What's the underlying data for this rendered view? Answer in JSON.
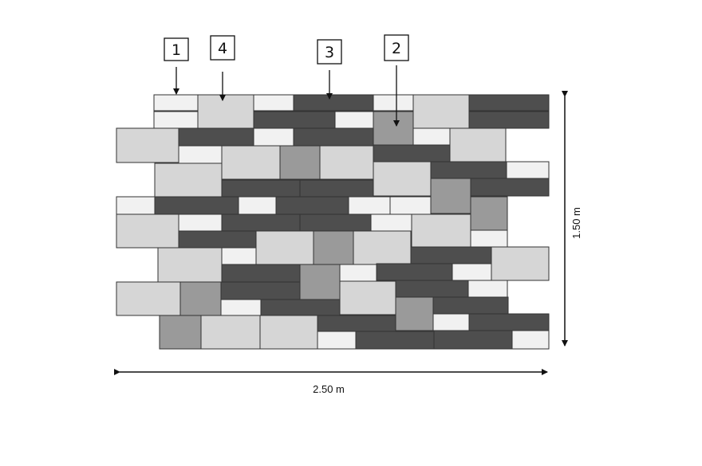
{
  "diagram": {
    "dimensions": {
      "width_label": "2.50 m",
      "height_label": "1.50 m"
    },
    "callouts": [
      {
        "number": "1",
        "points_to": "white stone"
      },
      {
        "number": "4",
        "points_to": "light grey stone"
      },
      {
        "number": "3",
        "points_to": "dark grey stone"
      },
      {
        "number": "2",
        "points_to": "medium grey stone"
      }
    ],
    "stone_types": {
      "1": "#f1f1f1",
      "2": "#9a9a9a",
      "3": "#4e4e4e",
      "4": "#d6d6d6"
    },
    "outline_color": "#333333"
  }
}
